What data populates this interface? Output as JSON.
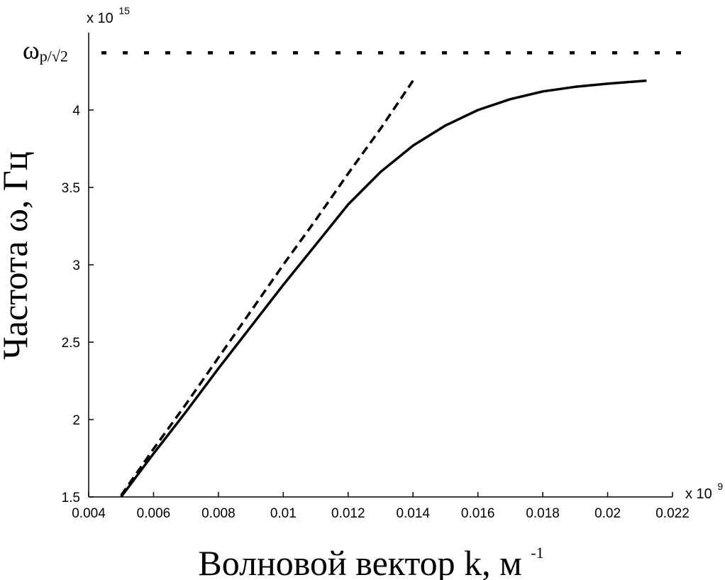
{
  "chart_data": {
    "type": "line",
    "title": "",
    "xlabel": "Волновой вектор k, м",
    "xlabel_sup": "-1",
    "ylabel": "Частота ω, Гц",
    "x_multiplier": "x 10",
    "x_multiplier_exp": "9",
    "y_multiplier": "x 10",
    "y_multiplier_exp": "15",
    "xlim": [
      0.004,
      0.022
    ],
    "ylim": [
      1.5,
      4.5
    ],
    "x_ticks": [
      0.004,
      0.006,
      0.008,
      0.01,
      0.012,
      0.014,
      0.016,
      0.018,
      0.02,
      0.022
    ],
    "x_tick_labels": [
      "0.004",
      "0.006",
      "0.008",
      "0.01",
      "0.012",
      "0.014",
      "0.016",
      "0.018",
      "0.02",
      "0.022"
    ],
    "y_ticks": [
      1.5,
      2,
      2.5,
      3,
      3.5,
      4
    ],
    "y_tick_labels": [
      "1.5",
      "2",
      "2.5",
      "3",
      "3.5",
      "4"
    ],
    "grid": false,
    "reference_line": {
      "label_main": "ω",
      "label_sub": "p/√2",
      "value": 4.37,
      "style": "dotted"
    },
    "series": [
      {
        "style": "solid",
        "x": [
          0.005,
          0.006,
          0.007,
          0.008,
          0.009,
          0.01,
          0.011,
          0.012,
          0.013,
          0.014,
          0.015,
          0.016,
          0.017,
          0.018,
          0.019,
          0.02,
          0.0212
        ],
        "y": [
          1.5,
          1.78,
          2.05,
          2.33,
          2.6,
          2.87,
          3.13,
          3.39,
          3.6,
          3.77,
          3.9,
          4.0,
          4.07,
          4.12,
          4.15,
          4.17,
          4.19
        ]
      },
      {
        "style": "dashed",
        "x": [
          0.005,
          0.006,
          0.007,
          0.008,
          0.009,
          0.01,
          0.011,
          0.012,
          0.013,
          0.014
        ],
        "y": [
          1.51,
          1.81,
          2.1,
          2.4,
          2.7,
          3.0,
          3.29,
          3.59,
          3.88,
          4.19
        ]
      }
    ]
  }
}
